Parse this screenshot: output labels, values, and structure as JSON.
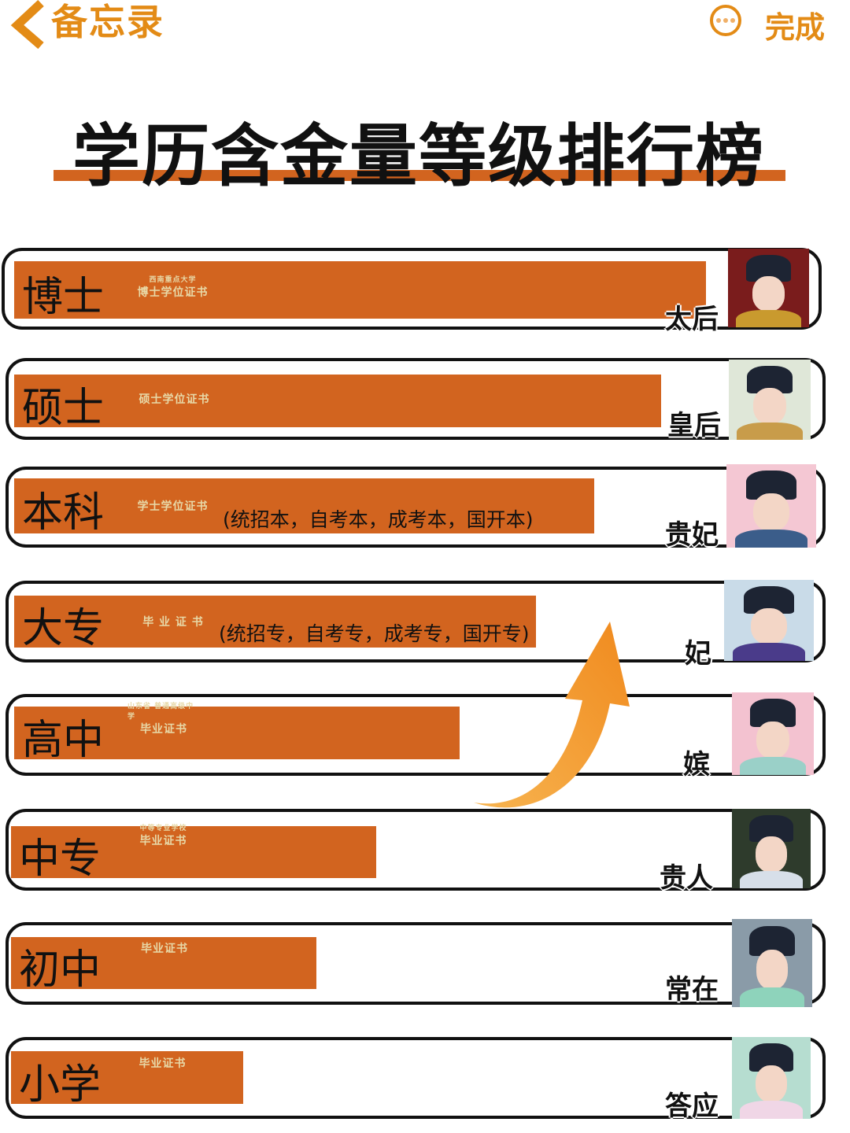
{
  "topbar": {
    "back_label": "备忘录",
    "back_icon": "chevron-left-icon",
    "more_icon": "more-circle-icon",
    "done_label": "完成",
    "accent_color": "#e38b16"
  },
  "title": "学历含金量等级排行榜",
  "bar_color": "#d2641f",
  "rows": [
    {
      "level": "博士",
      "cert_text": "博士学位证书",
      "cert_header": "西南重点大学",
      "note": "",
      "rank": "太后"
    },
    {
      "level": "硕士",
      "cert_text": "硕士学位证书",
      "cert_header": "",
      "note": "",
      "rank": "皇后"
    },
    {
      "level": "本科",
      "cert_text": "学士学位证书",
      "cert_header": "",
      "note": "(统招本，自考本，成考本，国开本)",
      "rank": "贵妃"
    },
    {
      "level": "大专",
      "cert_text": "毕 业 证 书",
      "cert_header": "",
      "note": "(统招专，自考专，成考专，国开专)",
      "rank": "妃"
    },
    {
      "level": "高中",
      "cert_text": "毕业证书",
      "cert_header": "山东省 普通高级中学",
      "note": "",
      "rank": "嫔"
    },
    {
      "level": "中专",
      "cert_text": "毕业证书",
      "cert_header": "中等专业学校",
      "note": "",
      "rank": "贵人"
    },
    {
      "level": "初中",
      "cert_text": "毕业证书",
      "cert_header": "",
      "note": "",
      "rank": "常在"
    },
    {
      "level": "小学",
      "cert_text": "毕业证书",
      "cert_header": "",
      "note": "",
      "rank": "答应"
    }
  ]
}
